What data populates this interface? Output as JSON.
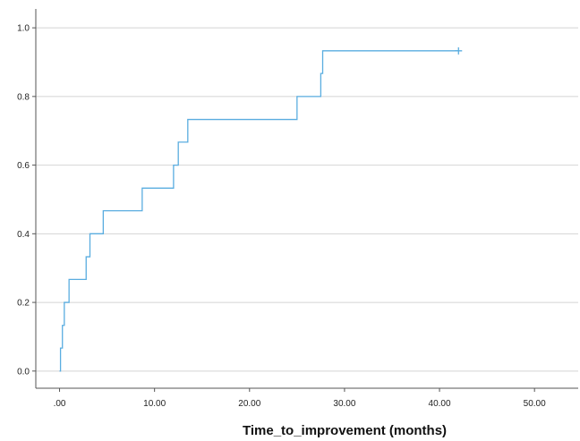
{
  "chart_data": {
    "type": "line",
    "title": "",
    "xlabel": "Time_to_improvement (months)",
    "ylabel": "",
    "xlim": [
      -2.5,
      54.6
    ],
    "ylim": [
      -0.05,
      1.055
    ],
    "x_ticks": [
      0,
      10,
      20,
      30,
      40,
      50
    ],
    "x_tick_labels": [
      ".00",
      "10.00",
      "20.00",
      "30.00",
      "40.00",
      "50.00"
    ],
    "y_ticks": [
      0.0,
      0.2,
      0.4,
      0.6,
      0.8,
      1.0
    ],
    "y_tick_labels": [
      "0.0",
      "0.2",
      "0.4",
      "0.6",
      "0.8",
      "1.0"
    ],
    "grid": "horizontal",
    "step": "post",
    "series": [
      {
        "color": "#5aade0",
        "x": [
          0.0,
          0.1,
          0.3,
          0.5,
          1.0,
          2.8,
          3.2,
          4.6,
          8.7,
          12.0,
          12.5,
          13.5,
          25.0,
          27.5,
          27.7,
          42.0
        ],
        "y": [
          0.0,
          0.067,
          0.133,
          0.2,
          0.267,
          0.333,
          0.4,
          0.467,
          0.533,
          0.6,
          0.667,
          0.733,
          0.8,
          0.867,
          0.933,
          0.933
        ],
        "censored": [
          {
            "x": 42.0,
            "y": 0.933
          }
        ]
      }
    ]
  }
}
